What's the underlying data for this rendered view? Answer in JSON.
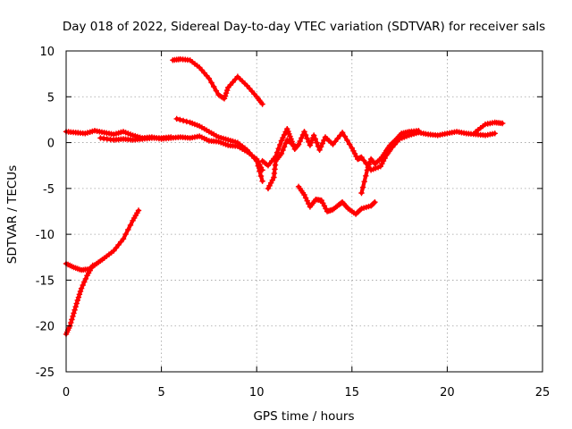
{
  "chart_data": {
    "type": "scatter",
    "title": "Day 018 of 2022, Sidereal Day-to-day VTEC variation (SDTVAR) for receiver sals",
    "xlabel": "GPS time / hours",
    "ylabel": "SDTVAR / TECUs",
    "xlim": [
      0,
      25
    ],
    "ylim": [
      -25,
      10
    ],
    "xticks": [
      "0",
      "5",
      "10",
      "15",
      "20",
      "25"
    ],
    "yticks": [
      "10",
      "5",
      "0",
      "-5",
      "-10",
      "-15",
      "-20",
      "-25"
    ],
    "grid": true,
    "marker": "+",
    "color": "#ff0000",
    "series": [
      {
        "name": "track-main",
        "points": [
          [
            0,
            1.2
          ],
          [
            0.5,
            1.1
          ],
          [
            1,
            1.0
          ],
          [
            1.5,
            1.3
          ],
          [
            2,
            1.1
          ],
          [
            2.5,
            0.9
          ],
          [
            3,
            1.2
          ],
          [
            3.5,
            0.8
          ],
          [
            4,
            0.5
          ],
          [
            4.5,
            0.6
          ],
          [
            5,
            0.4
          ],
          [
            5.5,
            0.5
          ],
          [
            6,
            0.6
          ],
          [
            6.5,
            0.5
          ],
          [
            7,
            0.7
          ],
          [
            7.5,
            0.2
          ],
          [
            8,
            0.1
          ],
          [
            8.5,
            -0.3
          ],
          [
            9,
            -0.4
          ],
          [
            9.5,
            -1.0
          ],
          [
            10,
            -1.8
          ],
          [
            10.3,
            -3.0
          ]
        ]
      },
      {
        "name": "track-main-2",
        "points": [
          [
            1.8,
            0.5
          ],
          [
            2.5,
            0.3
          ],
          [
            3,
            0.4
          ],
          [
            3.5,
            0.3
          ],
          [
            4,
            0.4
          ],
          [
            4.5,
            0.5
          ],
          [
            5,
            0.5
          ],
          [
            5.5,
            0.6
          ]
        ]
      },
      {
        "name": "track-b",
        "points": [
          [
            5.8,
            2.6
          ],
          [
            6.5,
            2.2
          ],
          [
            7,
            1.8
          ],
          [
            7.5,
            1.2
          ],
          [
            8,
            0.6
          ],
          [
            8.5,
            0.3
          ],
          [
            9,
            0.0
          ],
          [
            9.5,
            -0.8
          ],
          [
            10,
            -2.0
          ],
          [
            10.3,
            -4.2
          ]
        ]
      },
      {
        "name": "track-c",
        "points": [
          [
            5.6,
            9.0
          ],
          [
            6,
            9.1
          ],
          [
            6.5,
            9.0
          ],
          [
            7,
            8.2
          ],
          [
            7.5,
            7.0
          ],
          [
            8,
            5.2
          ],
          [
            8.3,
            4.8
          ],
          [
            8.5,
            6.0
          ],
          [
            9,
            7.2
          ],
          [
            9.5,
            6.2
          ],
          [
            10,
            5.0
          ],
          [
            10.3,
            4.2
          ]
        ]
      },
      {
        "name": "track-d",
        "points": [
          [
            10.3,
            -2.0
          ],
          [
            10.6,
            -2.5
          ],
          [
            11,
            -1.5
          ],
          [
            11.3,
            0.2
          ],
          [
            11.6,
            1.5
          ],
          [
            11.8,
            0.4
          ],
          [
            12,
            -0.7
          ],
          [
            12.2,
            -0.2
          ],
          [
            12.5,
            1.2
          ],
          [
            12.8,
            -0.3
          ],
          [
            13,
            0.8
          ],
          [
            13.3,
            -0.8
          ],
          [
            13.6,
            0.6
          ],
          [
            14,
            -0.2
          ],
          [
            14.5,
            1.1
          ],
          [
            15,
            -0.6
          ],
          [
            15.3,
            -1.8
          ],
          [
            15.5,
            -1.6
          ],
          [
            16,
            -3.0
          ],
          [
            16.5,
            -2.6
          ],
          [
            16.8,
            -1.4
          ],
          [
            17,
            -0.8
          ],
          [
            17.5,
            0.4
          ],
          [
            18,
            0.8
          ],
          [
            18.5,
            1.1
          ],
          [
            19,
            0.9
          ],
          [
            19.5,
            0.8
          ],
          [
            20,
            1.0
          ],
          [
            20.5,
            1.2
          ],
          [
            21,
            1.0
          ],
          [
            21.5,
            0.9
          ],
          [
            22,
            0.8
          ],
          [
            22.5,
            1.0
          ]
        ]
      },
      {
        "name": "track-d-2",
        "points": [
          [
            10.6,
            -5.0
          ],
          [
            10.9,
            -3.8
          ],
          [
            11,
            -2.0
          ],
          [
            11.3,
            -1.2
          ],
          [
            11.6,
            0.3
          ],
          [
            12,
            -0.4
          ]
        ]
      },
      {
        "name": "track-d-3",
        "points": [
          [
            15.5,
            -5.5
          ],
          [
            15.8,
            -3.0
          ],
          [
            16,
            -1.8
          ],
          [
            16.2,
            -2.3
          ],
          [
            16.5,
            -1.8
          ],
          [
            16.8,
            -0.9
          ],
          [
            17,
            -0.3
          ],
          [
            17.3,
            0.3
          ],
          [
            17.6,
            1.0
          ],
          [
            18,
            1.2
          ],
          [
            18.5,
            1.3
          ]
        ]
      },
      {
        "name": "track-e",
        "points": [
          [
            12.2,
            -4.8
          ],
          [
            12.5,
            -5.7
          ],
          [
            12.8,
            -7.0
          ],
          [
            13.1,
            -6.2
          ],
          [
            13.4,
            -6.3
          ],
          [
            13.7,
            -7.5
          ],
          [
            14,
            -7.3
          ],
          [
            14.3,
            -6.8
          ],
          [
            14.5,
            -6.5
          ],
          [
            14.8,
            -7.2
          ],
          [
            15.2,
            -7.8
          ],
          [
            15.5,
            -7.2
          ],
          [
            16,
            -6.9
          ],
          [
            16.2,
            -6.5
          ]
        ]
      },
      {
        "name": "track-f",
        "points": [
          [
            21.5,
            1.2
          ],
          [
            22,
            2.0
          ],
          [
            22.5,
            2.2
          ],
          [
            22.9,
            2.1
          ]
        ]
      },
      {
        "name": "track-g",
        "points": [
          [
            0,
            -13.2
          ],
          [
            0.4,
            -13.6
          ],
          [
            0.8,
            -13.9
          ],
          [
            1.2,
            -13.8
          ],
          [
            1.6,
            -13.2
          ],
          [
            2,
            -12.6
          ],
          [
            2.5,
            -11.8
          ],
          [
            3,
            -10.5
          ],
          [
            3.5,
            -8.5
          ],
          [
            3.8,
            -7.4
          ]
        ]
      },
      {
        "name": "track-h",
        "points": [
          [
            0,
            -20.9
          ],
          [
            0.2,
            -20.0
          ],
          [
            0.4,
            -18.6
          ],
          [
            0.6,
            -17.2
          ],
          [
            0.8,
            -15.9
          ],
          [
            1.1,
            -14.5
          ],
          [
            1.4,
            -13.4
          ]
        ]
      }
    ]
  }
}
